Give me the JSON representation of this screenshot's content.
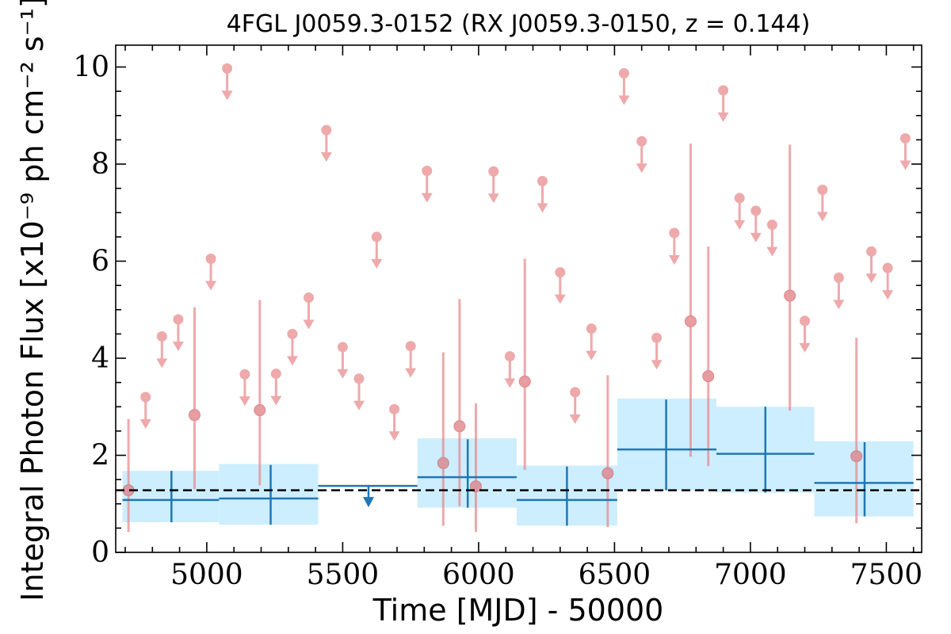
{
  "chart_data": {
    "type": "scatter",
    "title": "4FGL J0059.3-0152 (RX J0059.3-0150, z = 0.144)",
    "xlabel": "Time [MJD] - 50000",
    "ylabel": "Integral Photon Flux [x10⁻⁹ ph cm⁻² s⁻¹]",
    "xlim": [
      4665,
      7630
    ],
    "ylim": [
      0,
      10.45
    ],
    "x_ticks": [
      5000,
      5500,
      6000,
      6500,
      7000,
      7500
    ],
    "x_tick_labels": [
      "5000",
      "5500",
      "6000",
      "6500",
      "7000",
      "7500"
    ],
    "y_ticks": [
      0,
      2,
      4,
      6,
      8,
      10
    ],
    "y_tick_labels": [
      "0",
      "2",
      "4",
      "6",
      "8",
      "10"
    ],
    "grid": false,
    "average_flux": 1.28,
    "colors": {
      "short_bins": "#e8888c",
      "long_bins": "#1f77b4",
      "band": "#cdeeff",
      "average_line": "#000000"
    },
    "short_bins_upper_limits": [
      {
        "x": 4775,
        "y": 3.2
      },
      {
        "x": 4835,
        "y": 4.45
      },
      {
        "x": 4895,
        "y": 4.8
      },
      {
        "x": 5015,
        "y": 6.05
      },
      {
        "x": 5075,
        "y": 9.97
      },
      {
        "x": 5140,
        "y": 3.67
      },
      {
        "x": 5255,
        "y": 3.68
      },
      {
        "x": 5315,
        "y": 4.5
      },
      {
        "x": 5375,
        "y": 5.25
      },
      {
        "x": 5440,
        "y": 8.7
      },
      {
        "x": 5500,
        "y": 4.23
      },
      {
        "x": 5560,
        "y": 3.58
      },
      {
        "x": 5625,
        "y": 6.5
      },
      {
        "x": 5690,
        "y": 2.95
      },
      {
        "x": 5750,
        "y": 4.25
      },
      {
        "x": 5810,
        "y": 7.86
      },
      {
        "x": 6055,
        "y": 7.85
      },
      {
        "x": 6115,
        "y": 4.04
      },
      {
        "x": 6235,
        "y": 7.65
      },
      {
        "x": 6300,
        "y": 5.77
      },
      {
        "x": 6355,
        "y": 3.3
      },
      {
        "x": 6415,
        "y": 4.61
      },
      {
        "x": 6535,
        "y": 9.87
      },
      {
        "x": 6600,
        "y": 8.47
      },
      {
        "x": 6655,
        "y": 4.42
      },
      {
        "x": 6720,
        "y": 6.58
      },
      {
        "x": 6900,
        "y": 9.52
      },
      {
        "x": 6960,
        "y": 7.3
      },
      {
        "x": 7020,
        "y": 7.04
      },
      {
        "x": 7080,
        "y": 6.75
      },
      {
        "x": 7200,
        "y": 4.77
      },
      {
        "x": 7265,
        "y": 7.47
      },
      {
        "x": 7325,
        "y": 5.66
      },
      {
        "x": 7445,
        "y": 6.2
      },
      {
        "x": 7505,
        "y": 5.86
      },
      {
        "x": 7570,
        "y": 8.53
      }
    ],
    "short_bins_detections": [
      {
        "x": 4712,
        "y": 1.28,
        "ylo": 0.42,
        "yhi": 2.75
      },
      {
        "x": 4955,
        "y": 2.83,
        "ylo": 1.3,
        "yhi": 5.05
      },
      {
        "x": 5195,
        "y": 2.93,
        "ylo": 1.38,
        "yhi": 5.2
      },
      {
        "x": 5870,
        "y": 1.84,
        "ylo": 0.55,
        "yhi": 4.12
      },
      {
        "x": 5930,
        "y": 2.6,
        "ylo": 0.95,
        "yhi": 5.22
      },
      {
        "x": 5990,
        "y": 1.36,
        "ylo": 0.42,
        "yhi": 3.07
      },
      {
        "x": 6170,
        "y": 3.52,
        "ylo": 1.7,
        "yhi": 6.05
      },
      {
        "x": 6475,
        "y": 1.63,
        "ylo": 0.52,
        "yhi": 3.65
      },
      {
        "x": 6780,
        "y": 4.76,
        "ylo": 1.97,
        "yhi": 8.42
      },
      {
        "x": 6845,
        "y": 3.63,
        "ylo": 1.78,
        "yhi": 6.3
      },
      {
        "x": 7145,
        "y": 5.29,
        "ylo": 2.92,
        "yhi": 8.4
      },
      {
        "x": 7390,
        "y": 1.98,
        "ylo": 0.6,
        "yhi": 4.42
      }
    ],
    "long_bins": [
      {
        "x0": 4690,
        "x1": 5045,
        "xc": 4870,
        "y": 1.08,
        "ylo": 0.62,
        "yhi": 1.68,
        "blo": 0.62,
        "bhi": 1.68
      },
      {
        "x0": 5045,
        "x1": 5410,
        "xc": 5235,
        "y": 1.11,
        "ylo": 0.57,
        "yhi": 1.8,
        "blo": 0.57,
        "bhi": 1.82
      },
      {
        "x0": 5775,
        "x1": 6140,
        "xc": 5960,
        "y": 1.55,
        "ylo": 0.92,
        "yhi": 2.33,
        "blo": 0.92,
        "bhi": 2.35
      },
      {
        "x0": 6140,
        "x1": 6510,
        "xc": 6325,
        "y": 1.08,
        "ylo": 0.55,
        "yhi": 1.77,
        "blo": 0.55,
        "bhi": 1.79
      },
      {
        "x0": 6510,
        "x1": 6875,
        "xc": 6690,
        "y": 2.12,
        "ylo": 1.28,
        "yhi": 3.15,
        "blo": 1.28,
        "bhi": 3.17
      },
      {
        "x0": 6875,
        "x1": 7235,
        "xc": 7055,
        "y": 2.03,
        "ylo": 1.23,
        "yhi": 3.0,
        "blo": 1.23,
        "bhi": 3.0
      },
      {
        "x0": 7235,
        "x1": 7600,
        "xc": 7420,
        "y": 1.43,
        "ylo": 0.74,
        "yhi": 2.27,
        "blo": 0.74,
        "bhi": 2.29
      }
    ],
    "long_bins_upper_limits": [
      {
        "x0": 5410,
        "x1": 5775,
        "xc": 5595,
        "y": 1.37
      }
    ]
  }
}
